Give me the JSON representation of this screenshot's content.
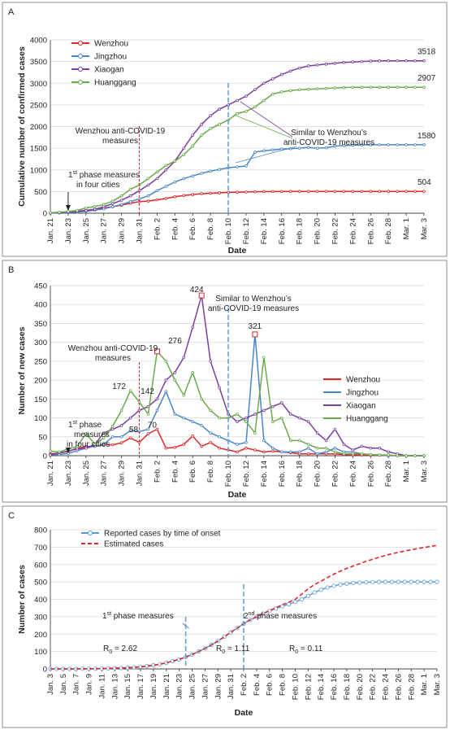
{
  "figure": {
    "panels": [
      "A",
      "B",
      "C"
    ]
  },
  "chart_data": [
    {
      "panel": "A",
      "type": "line",
      "xlabel": "Date",
      "ylabel": "Cumulative number of confirmed cases",
      "ylim": [
        0,
        4000
      ],
      "yticks": [
        "0",
        "500",
        "1000",
        "1500",
        "2000",
        "2500",
        "3000",
        "3500",
        "4000"
      ],
      "xtick_labels": [
        "Jan. 21",
        "Jan. 23",
        "Jan. 25",
        "Jan. 27",
        "Jan. 29",
        "Jan. 31",
        "Feb. 2",
        "Feb. 4",
        "Feb. 6",
        "Feb. 8",
        "Feb. 10",
        "Feb. 12",
        "Feb. 14",
        "Feb. 16",
        "Feb. 18",
        "Feb. 20",
        "Feb. 22",
        "Feb. 24",
        "Feb. 26",
        "Feb. 28",
        "Mar. 1",
        "Mar. 3"
      ],
      "x_count": 43,
      "grid": "horizontal",
      "legend_position": "top-left",
      "series": [
        {
          "name": "Wenzhou",
          "color": "#e0262a",
          "values": [
            5,
            12,
            23,
            43,
            67,
            92,
            121,
            150,
            184,
            231,
            266,
            280,
            310,
            340,
            380,
            410,
            430,
            450,
            460,
            470,
            480,
            485,
            490,
            495,
            498,
            500,
            502,
            503,
            503,
            504,
            504,
            504,
            504,
            504,
            504,
            504,
            504,
            504,
            504,
            504,
            504,
            504,
            504
          ]
        },
        {
          "name": "Jingzhou",
          "color": "#4a86c6",
          "values": [
            3,
            6,
            12,
            25,
            45,
            70,
            100,
            150,
            200,
            266,
            330,
            400,
            520,
            620,
            720,
            800,
            860,
            920,
            970,
            1010,
            1050,
            1070,
            1090,
            1410,
            1440,
            1460,
            1480,
            1490,
            1500,
            1520,
            1500,
            1510,
            1550,
            1560,
            1570,
            1575,
            1578,
            1580,
            1580,
            1580,
            1580,
            1580,
            1580
          ]
        },
        {
          "name": "Xiaogan",
          "color": "#7b3fa0",
          "values": [
            2,
            10,
            22,
            40,
            60,
            90,
            150,
            220,
            300,
            400,
            520,
            650,
            800,
            1000,
            1200,
            1500,
            1800,
            2050,
            2250,
            2400,
            2500,
            2600,
            2700,
            2850,
            3000,
            3100,
            3200,
            3280,
            3350,
            3400,
            3420,
            3440,
            3460,
            3480,
            3490,
            3500,
            3510,
            3515,
            3518,
            3518,
            3518,
            3518,
            3518
          ]
        },
        {
          "name": "Huanggang",
          "color": "#6aaa4a",
          "values": [
            12,
            22,
            40,
            64,
            122,
            153,
            200,
            278,
            400,
            550,
            650,
            800,
            950,
            1100,
            1200,
            1350,
            1550,
            1800,
            1950,
            2050,
            2150,
            2300,
            2350,
            2450,
            2600,
            2750,
            2800,
            2830,
            2850,
            2860,
            2870,
            2880,
            2890,
            2900,
            2905,
            2907,
            2907,
            2907,
            2907,
            2907,
            2907,
            2907,
            2907
          ]
        }
      ],
      "end_labels": [
        "504",
        "1580",
        "3518",
        "2907"
      ],
      "annotations": {
        "wenzhou_measures": [
          "Wenzhou anti-COVID-19",
          "measures"
        ],
        "first_phase": [
          "1",
          "st",
          " phase measures",
          "in four cities"
        ],
        "similar": [
          "Similar to Wenzhou’s",
          "anti-COVID-19  measures"
        ]
      }
    },
    {
      "panel": "B",
      "type": "line",
      "xlabel": "Date",
      "ylabel": "Number of new cases",
      "ylim": [
        0,
        450
      ],
      "yticks": [
        "0",
        "50",
        "100",
        "150",
        "200",
        "250",
        "300",
        "350",
        "400",
        "450"
      ],
      "xtick_labels": [
        "Jan. 21",
        "Jan. 23",
        "Jan. 25",
        "Jan. 27",
        "Jan. 29",
        "Jan. 31",
        "Feb. 2",
        "Feb. 4",
        "Feb. 6",
        "Feb. 8",
        "Feb. 10",
        "Feb. 12",
        "Feb. 14",
        "Feb. 16",
        "Feb. 18",
        "Feb. 20",
        "Feb. 22",
        "Feb. 24",
        "Feb. 26",
        "Feb. 28",
        "Mar. 1",
        "Mar. 3"
      ],
      "x_count": 43,
      "grid": "horizontal",
      "legend_position": "right",
      "series": [
        {
          "name": "Wenzhou",
          "color": "#e0262a",
          "values": [
            5,
            7,
            11,
            20,
            24,
            25,
            29,
            29,
            34,
            47,
            35,
            58,
            70,
            20,
            22,
            30,
            52,
            25,
            35,
            20,
            15,
            10,
            20,
            15,
            10,
            12,
            10,
            8,
            5,
            5,
            5,
            5,
            5,
            3,
            2,
            2,
            1,
            1,
            1,
            0,
            0,
            0,
            0
          ]
        },
        {
          "name": "Jingzhou",
          "color": "#4a86c6",
          "values": [
            3,
            3,
            6,
            13,
            20,
            25,
            30,
            50,
            50,
            66,
            64,
            70,
            120,
            170,
            110,
            100,
            90,
            80,
            60,
            50,
            40,
            30,
            35,
            321,
            40,
            20,
            10,
            10,
            10,
            20,
            5,
            10,
            20,
            10,
            10,
            5,
            3,
            2,
            0,
            0,
            0,
            0,
            0
          ]
        },
        {
          "name": "Xiaogan",
          "color": "#7b3fa0",
          "values": [
            2,
            8,
            12,
            18,
            20,
            30,
            60,
            70,
            80,
            100,
            120,
            130,
            150,
            200,
            220,
            260,
            340,
            424,
            250,
            180,
            110,
            90,
            100,
            110,
            120,
            130,
            140,
            110,
            100,
            90,
            60,
            40,
            70,
            30,
            15,
            25,
            20,
            20,
            10,
            5,
            0,
            0,
            0
          ]
        },
        {
          "name": "Huanggang",
          "color": "#6aaa4a",
          "values": [
            12,
            10,
            18,
            24,
            58,
            31,
            47,
            78,
            120,
            172,
            142,
            110,
            276,
            250,
            200,
            160,
            220,
            150,
            120,
            100,
            100,
            110,
            90,
            60,
            260,
            90,
            100,
            40,
            40,
            30,
            20,
            20,
            10,
            5,
            5,
            5,
            3,
            2,
            2,
            0,
            0,
            0,
            0
          ]
        }
      ],
      "data_labels": [
        "424",
        "321",
        "276",
        "172",
        "142",
        "58",
        "70"
      ],
      "annotations": {
        "wenzhou_measures": [
          "Wenzhou anti-COVID-19",
          "measures"
        ],
        "first_phase": [
          "1",
          "st",
          " phase",
          "measures",
          "in four  cities"
        ],
        "similar": [
          "Similar to Wenzhou’s",
          "anti-COVID-19  measures"
        ]
      }
    },
    {
      "panel": "C",
      "type": "line",
      "xlabel": "Date",
      "ylabel": "Number of cases",
      "ylim": [
        0,
        800
      ],
      "yticks": [
        "0",
        "100",
        "200",
        "300",
        "400",
        "500",
        "600",
        "700",
        "800"
      ],
      "xtick_labels": [
        "Jan. 3",
        "Jan. 5",
        "Jan. 7",
        "Jan. 9",
        "Jan. 11",
        "Jan. 13",
        "Jan. 15",
        "Jan. 17",
        "Jan. 19",
        "Jan. 21",
        "Jan. 23",
        "Jan. 25",
        "Jan. 27",
        "Jan. 29",
        "Jan. 31",
        "Feb. 2",
        "Feb. 4",
        "Feb. 6",
        "Feb. 8",
        "Feb. 10",
        "Feb. 12",
        "Feb. 14",
        "Feb. 16",
        "Feb. 18",
        "Feb. 20",
        "Feb. 22",
        "Feb. 24",
        "Feb. 26",
        "Feb. 28",
        "Mar. 1",
        "Mar. 3"
      ],
      "x_count": 61,
      "grid": "horizontal",
      "legend_position": "top-left",
      "series": [
        {
          "name": "Reported cases by time of onset",
          "color": "#5b9bd5",
          "values": [
            0,
            0,
            0,
            0,
            0,
            1,
            1,
            1,
            2,
            3,
            4,
            5,
            7,
            9,
            12,
            16,
            21,
            27,
            35,
            45,
            55,
            68,
            83,
            100,
            118,
            138,
            160,
            185,
            210,
            235,
            260,
            282,
            300,
            318,
            333,
            347,
            360,
            372,
            385,
            400,
            420,
            440,
            455,
            468,
            478,
            485,
            490,
            494,
            496,
            498,
            499,
            500,
            500,
            500,
            500,
            500,
            500,
            500,
            500,
            500,
            500
          ]
        },
        {
          "name": "Estimated cases",
          "color": "#e0262a",
          "values": [
            0,
            0,
            0,
            0,
            0,
            1,
            1,
            1,
            2,
            3,
            4,
            5,
            7,
            9,
            12,
            16,
            21,
            27,
            35,
            45,
            55,
            68,
            83,
            100,
            118,
            138,
            160,
            185,
            210,
            235,
            260,
            282,
            300,
            318,
            335,
            352,
            368,
            383,
            400,
            430,
            460,
            485,
            505,
            525,
            545,
            562,
            578,
            592,
            605,
            618,
            630,
            642,
            652,
            662,
            670,
            678,
            685,
            692,
            698,
            704,
            710
          ]
        }
      ],
      "annotations": {
        "first_phase": [
          "1",
          "st",
          " phase measures"
        ],
        "second_phase": [
          "2",
          "nd",
          " phase measures"
        ],
        "r0": [
          [
            "R",
            "0",
            " = 2.62"
          ],
          [
            "R",
            "0",
            " = 1.11"
          ],
          [
            "R",
            "0",
            " = 0.11"
          ]
        ]
      }
    }
  ]
}
